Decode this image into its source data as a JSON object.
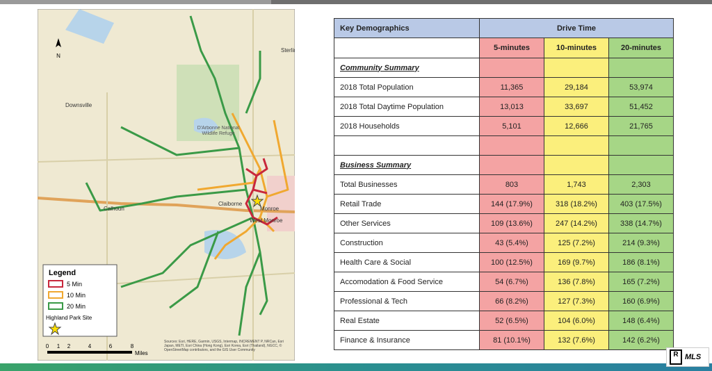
{
  "map": {
    "labels": {
      "downsville": "Downsville",
      "calhoun": "Calhoun",
      "claiborne": "Claiborne",
      "monroe": "Monroe",
      "west_monroe": "West Monroe",
      "refuge": "D'Arbonne National Wildlife Refuge",
      "sterlington": "Sterlin"
    },
    "legend": {
      "title": "Legend",
      "items": [
        "5 Min",
        "10 Min",
        "20 Min"
      ],
      "site": "Highland Park Site"
    },
    "scale": {
      "ticks": [
        "0",
        "1",
        "2",
        "4",
        "6",
        "8"
      ],
      "unit": "Miles"
    },
    "sources": "Sources: Esri, HERE, Garmin, USGS, Intermap, INCREMENT P, NRCan, Esri Japan, METI, Esri China (Hong Kong), Esri Korea, Esri (Thailand), NGCC, © OpenStreetMap contributors, and the GIS User Community"
  },
  "table": {
    "title": "Key Demographics",
    "group": "Drive Time",
    "columns": [
      "5-minutes",
      "10-minutes",
      "20-minutes"
    ],
    "sections": [
      {
        "title": "Community Summary",
        "rows": [
          {
            "label": "2018 Total Population",
            "values": [
              "11,365",
              "29,184",
              "53,974"
            ]
          },
          {
            "label": "2018 Total Daytime Population",
            "values": [
              "13,013",
              "33,697",
              "51,452"
            ]
          },
          {
            "label": "2018 Households",
            "values": [
              "5,101",
              "12,666",
              "21,765"
            ]
          }
        ]
      },
      {
        "title": "Business Summary",
        "rows": [
          {
            "label": "Total Businesses",
            "values": [
              "803",
              "1,743",
              "2,303"
            ]
          },
          {
            "label": "Retail Trade",
            "values": [
              "144 (17.9%)",
              "318 (18.2%)",
              "403 (17.5%)"
            ]
          },
          {
            "label": "Other Services",
            "values": [
              "109 (13.6%)",
              "247 (14.2%)",
              "338 (14.7%)"
            ]
          },
          {
            "label": "Construction",
            "values": [
              "43 (5.4%)",
              "125 (7.2%)",
              "214 (9.3%)"
            ]
          },
          {
            "label": "Health Care & Social",
            "values": [
              "100 (12.5%)",
              "169 (9.7%)",
              "186 (8.1%)"
            ]
          },
          {
            "label": "Accomodation & Food Service",
            "values": [
              "54 (6.7%)",
              "136 (7.8%)",
              "165 (7.2%)"
            ]
          },
          {
            "label": "Professional & Tech",
            "values": [
              "66 (8.2%)",
              "127 (7.3%)",
              "160 (6.9%)"
            ]
          },
          {
            "label": "Real Estate",
            "values": [
              "52 (6.5%)",
              "104 (6.0%)",
              "148 (6.4%)"
            ]
          },
          {
            "label": "Finance & Insurance",
            "values": [
              "81 (10.1%)",
              "132 (7.6%)",
              "142 (6.2%)"
            ]
          }
        ]
      }
    ]
  },
  "logo": "MLS"
}
